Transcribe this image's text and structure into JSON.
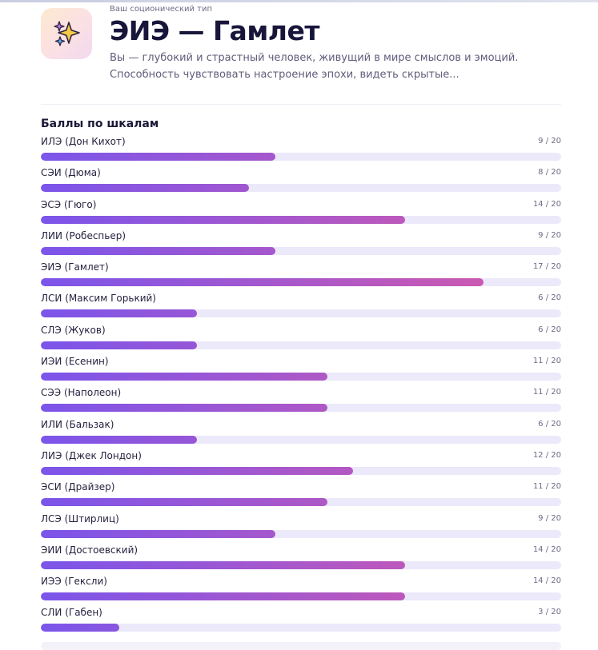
{
  "header": {
    "icon": "sparkles-icon",
    "eyebrow": "Ваш соционический тип",
    "title": "ЭИЭ — Гамлет",
    "description_line1": "Вы — глубокий и страстный человек, живущий в мире смыслов и эмоций.",
    "description_line2": "Способность чувствовать настроение эпохи, видеть скрытые..."
  },
  "scores": {
    "title": "Баллы по шкалам",
    "max": 20,
    "colors": {
      "start": "#7b55ea",
      "end": "#d95aa8",
      "track": "#ebe9fa"
    },
    "items": [
      {
        "name": "ИЛЭ (Дон Кихот)",
        "value": 9,
        "label": "9 / 20"
      },
      {
        "name": "СЭИ (Дюма)",
        "value": 8,
        "label": "8 / 20"
      },
      {
        "name": "ЭСЭ (Гюго)",
        "value": 14,
        "label": "14 / 20"
      },
      {
        "name": "ЛИИ (Робеспьер)",
        "value": 9,
        "label": "9 / 20"
      },
      {
        "name": "ЭИЭ (Гамлет)",
        "value": 17,
        "label": "17 / 20"
      },
      {
        "name": "ЛСИ (Максим Горький)",
        "value": 6,
        "label": "6 / 20"
      },
      {
        "name": "СЛЭ (Жуков)",
        "value": 6,
        "label": "6 / 20"
      },
      {
        "name": "ИЭИ (Есенин)",
        "value": 11,
        "label": "11 / 20"
      },
      {
        "name": "СЭЭ (Наполеон)",
        "value": 11,
        "label": "11 / 20"
      },
      {
        "name": "ИЛИ (Бальзак)",
        "value": 6,
        "label": "6 / 20"
      },
      {
        "name": "ЛИЭ (Джек Лондон)",
        "value": 12,
        "label": "12 / 20"
      },
      {
        "name": "ЭСИ (Драйзер)",
        "value": 11,
        "label": "11 / 20"
      },
      {
        "name": "ЛСЭ (Штирлиц)",
        "value": 9,
        "label": "9 / 20"
      },
      {
        "name": "ЭИИ (Достоевский)",
        "value": 14,
        "label": "14 / 20"
      },
      {
        "name": "ИЭЭ (Гексли)",
        "value": 14,
        "label": "14 / 20"
      },
      {
        "name": "СЛИ (Габен)",
        "value": 3,
        "label": "3 / 20"
      }
    ]
  }
}
